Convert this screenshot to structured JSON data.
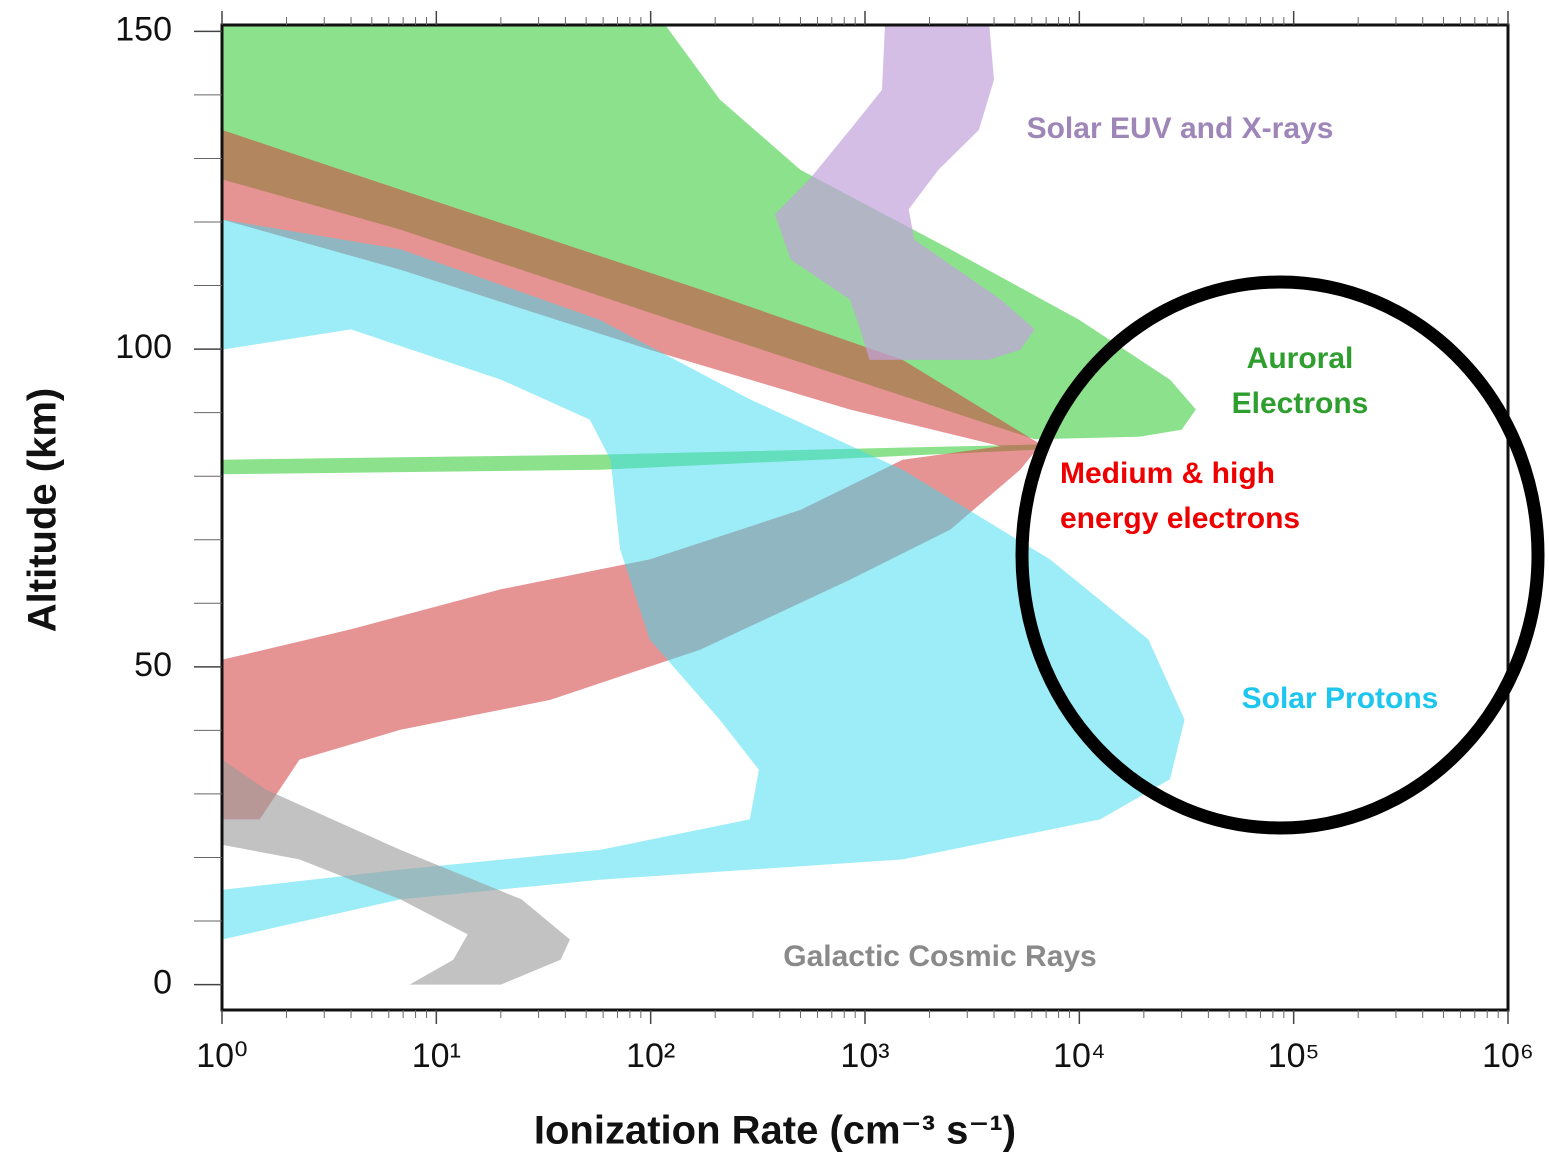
{
  "chart_data": {
    "type": "area",
    "x_label": "Ionization Rate (cm⁻³ s⁻¹)",
    "y_label": "Altitude (km)",
    "xscale": "log",
    "xlim": [
      1,
      1000000
    ],
    "ylim": [
      -4,
      151
    ],
    "xticks": [
      {
        "value": 1,
        "label": "10⁰"
      },
      {
        "value": 10,
        "label": "10¹"
      },
      {
        "value": 100,
        "label": "10²"
      },
      {
        "value": 1000,
        "label": "10³"
      },
      {
        "value": 10000,
        "label": "10⁴"
      },
      {
        "value": 100000,
        "label": "10⁵"
      },
      {
        "value": 1000000,
        "label": "10⁶"
      }
    ],
    "xminorticks": [
      2,
      3,
      4,
      5,
      6,
      7,
      8,
      9,
      20,
      30,
      40,
      50,
      60,
      70,
      80,
      90,
      200,
      300,
      400,
      500,
      600,
      700,
      800,
      900,
      2000,
      3000,
      4000,
      5000,
      6000,
      7000,
      8000,
      9000,
      20000,
      30000,
      40000,
      50000,
      60000,
      70000,
      80000,
      90000,
      200000,
      300000,
      400000,
      500000,
      600000,
      700000,
      800000,
      900000
    ],
    "yticks": [
      0,
      50,
      100,
      150
    ],
    "yminorticks": [
      10,
      20,
      30,
      40,
      60,
      70,
      80,
      90,
      110,
      120,
      130,
      140
    ],
    "series": [
      {
        "name_lines": [
          "Auroral",
          "Electrons"
        ],
        "color": "#3fcf3f",
        "opacity": 0.6,
        "x": [
          1,
          117,
          210,
          500,
          2500,
          10000,
          26500,
          35000,
          30000,
          19000,
          6200,
          170,
          6.8,
          1,
          null,
          1,
          58,
          6600,
          6600,
          58,
          1
        ],
        "y": [
          151,
          151,
          139.3,
          128.2,
          115.7,
          104.6,
          95.2,
          90.5,
          87.3,
          86.2,
          85.8,
          103.1,
          118.8,
          126.7,
          null,
          82.6,
          83.4,
          85,
          84.2,
          81,
          80.3
        ]
      },
      {
        "name_lines": [
          "Medium & high",
          "energy electrons"
        ],
        "color": "#d23a3a",
        "opacity": 0.55,
        "x": [
          1,
          6.8,
          170,
          1500,
          6600,
          5300,
          2500,
          850,
          170,
          34,
          6.8,
          2.3,
          1.5,
          1,
          1,
          4,
          20,
          99,
          500,
          1500,
          4300,
          850,
          99,
          6.8,
          1
        ],
        "y": [
          134.5,
          125.1,
          109.4,
          98.3,
          85,
          81,
          71.6,
          63.7,
          52.7,
          44.8,
          40.1,
          35.4,
          26,
          26,
          51.1,
          55.9,
          62.2,
          66.9,
          74.7,
          82.6,
          84.7,
          90.5,
          99.9,
          112.5,
          120.4
        ]
      },
      {
        "name_lines": [
          "Solar Protons"
        ],
        "color": "#3adcf0",
        "opacity": 0.5,
        "x": [
          1,
          6.8,
          58,
          290,
          1500,
          7300,
          21000,
          31000,
          26500,
          12500,
          1500,
          58,
          6.8,
          1,
          1,
          6.8,
          58,
          290,
          320,
          210,
          99,
          72,
          65,
          52,
          20,
          4,
          1
        ],
        "y": [
          120.4,
          115.7,
          104.6,
          92.1,
          81,
          66.9,
          54.3,
          41.7,
          32.3,
          26,
          19.7,
          16.5,
          13.4,
          7.1,
          14.9,
          18.1,
          21.2,
          26,
          33.8,
          41.7,
          54.3,
          68.5,
          82.6,
          88.9,
          95.2,
          103.1,
          99.9
        ]
      },
      {
        "name_lines": [
          "Solar EUV and X-rays"
        ],
        "color": "#c2a3dc",
        "opacity": 0.7,
        "x": [
          1240,
          3800,
          4000,
          3400,
          2200,
          1600,
          1700,
          4300,
          6200,
          5300,
          3800,
          1050,
          950,
          850,
          450,
          380,
          550,
          850,
          1200
        ],
        "y": [
          151,
          151,
          142.4,
          134.5,
          128.2,
          122,
          117.2,
          107.8,
          103.1,
          99.9,
          98.3,
          98.3,
          103.1,
          107.8,
          114.1,
          121.2,
          126.7,
          134.5,
          140.8
        ]
      },
      {
        "name_lines": [
          "Galactic Cosmic Rays"
        ],
        "color": "#9a9a9a",
        "opacity": 0.6,
        "x": [
          1,
          1.6,
          6.8,
          25,
          42,
          38,
          20,
          7.5,
          12,
          14,
          6.8,
          2.3,
          1
        ],
        "y": [
          35.4,
          30.7,
          21.2,
          13.4,
          7.1,
          3.9,
          0,
          0,
          3.9,
          7.9,
          13.4,
          19.7,
          22
        ]
      }
    ]
  }
}
